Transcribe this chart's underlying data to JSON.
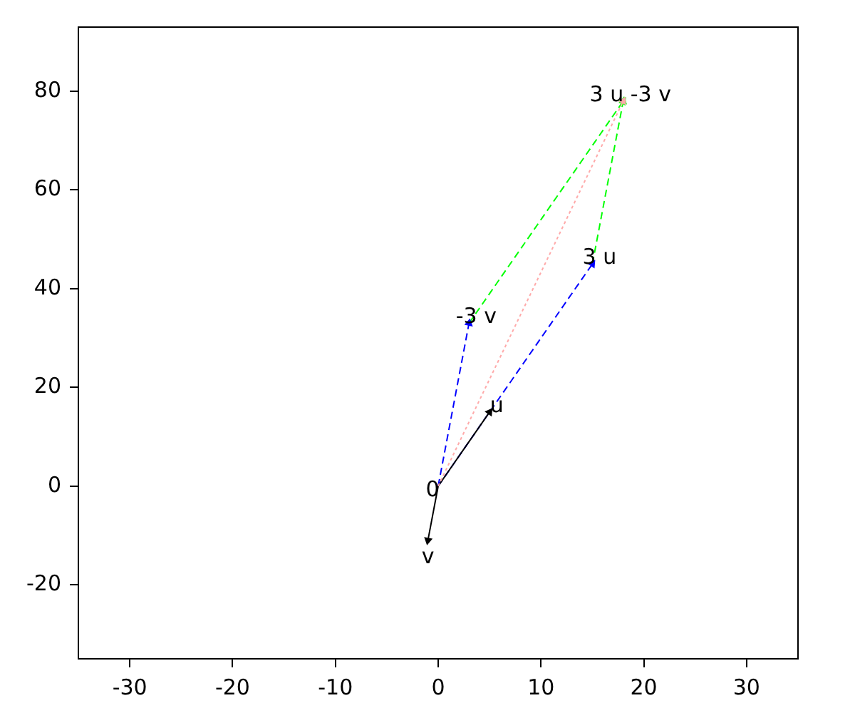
{
  "chart_data": {
    "type": "line",
    "xlim": [
      -35,
      35
    ],
    "ylim": [
      -35,
      93
    ],
    "xticks": [
      -30,
      -20,
      -10,
      0,
      10,
      20,
      30
    ],
    "yticks": [
      -20,
      0,
      20,
      40,
      60,
      80
    ],
    "grid": false,
    "legend": false,
    "marker": "triangle",
    "series": [
      {
        "color": "#ffaaaa",
        "line_style": "dotted",
        "x": [
          0,
          18
        ],
        "values": [
          0,
          78
        ]
      },
      {
        "color": "#000000",
        "line_style": "solid",
        "x": [
          -1,
          0,
          5
        ],
        "values": [
          -11,
          0,
          15
        ]
      },
      {
        "color": "#0000ff",
        "line_style": "dashed",
        "x": [
          0,
          15
        ],
        "values": [
          0,
          45
        ]
      },
      {
        "color": "#0000ff",
        "line_style": "dashed",
        "x": [
          0,
          3
        ],
        "values": [
          0,
          33
        ]
      },
      {
        "color": "#00ff00",
        "line_style": "dashed",
        "x": [
          3,
          18
        ],
        "values": [
          33,
          78
        ]
      },
      {
        "color": "#00ff00",
        "line_style": "dashed",
        "x": [
          15,
          18
        ],
        "values": [
          45,
          78
        ]
      }
    ],
    "annotations": [
      {
        "text": "0",
        "x": 0,
        "y": 0
      },
      {
        "text": "u",
        "x": 5,
        "y": 15
      },
      {
        "text": "v",
        "x": -1,
        "y": -11
      },
      {
        "text": "3 u",
        "x": 15,
        "y": 45
      },
      {
        "text": "-3 v",
        "x": 3,
        "y": 33
      },
      {
        "text": "3 u -3 v",
        "x": 18,
        "y": 78
      }
    ]
  }
}
